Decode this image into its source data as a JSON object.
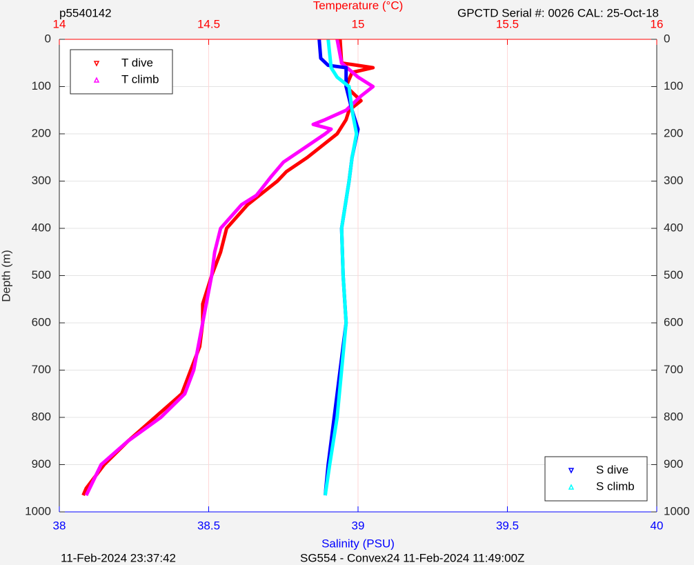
{
  "chart_data": {
    "type": "profile",
    "title_left": "p5540142",
    "title_right": "GPCTD Serial #: 0026 CAL: 25-Oct-18",
    "x2label": "Temperature (°C)",
    "xlabel": "Salinity (PSU)",
    "ylabel": "Depth (m)",
    "footer_left": "11-Feb-2024 23:37:42",
    "footer_right": "SG554 - Convex24 11-Feb-2024 11:49:00Z",
    "xlim": [
      38,
      40
    ],
    "xticks": [
      38,
      38.5,
      39,
      39.5,
      40
    ],
    "xcolor": "#0000ff",
    "x2lim": [
      14,
      16
    ],
    "x2ticks": [
      14,
      14.5,
      15,
      15.5,
      16
    ],
    "x2color": "#ff0000",
    "ylim": [
      1000,
      0
    ],
    "yticks": [
      0,
      100,
      200,
      300,
      400,
      500,
      600,
      700,
      800,
      900,
      1000
    ],
    "grid": true,
    "series": [
      {
        "name": "T dive",
        "color": "#ff0000",
        "axis": "x2",
        "legend": "top-left",
        "x": [
          14.94,
          14.945,
          15.05,
          14.98,
          14.96,
          15.01,
          14.97,
          14.96,
          14.93,
          14.89,
          14.83,
          14.76,
          14.73,
          14.67,
          14.63,
          14.56,
          14.54,
          14.51,
          14.48,
          14.48,
          14.47,
          14.44,
          14.41,
          14.32,
          14.23,
          14.15,
          14.09,
          14.08
        ],
        "y": [
          0,
          50,
          60,
          70,
          100,
          130,
          150,
          170,
          200,
          220,
          250,
          280,
          300,
          330,
          350,
          400,
          450,
          500,
          560,
          600,
          650,
          700,
          750,
          800,
          850,
          900,
          950,
          965
        ]
      },
      {
        "name": "T climb",
        "color": "#ff00ff",
        "axis": "x2",
        "legend": "top-left",
        "x": [
          14.93,
          14.945,
          15.0,
          15.05,
          15.01,
          14.96,
          14.89,
          14.85,
          14.91,
          14.89,
          14.82,
          14.75,
          14.71,
          14.66,
          14.61,
          14.54,
          14.52,
          14.51,
          14.48,
          14.45,
          14.42,
          14.34,
          14.23,
          14.14,
          14.09
        ],
        "y": [
          0,
          50,
          80,
          100,
          120,
          150,
          170,
          180,
          190,
          200,
          230,
          260,
          290,
          330,
          350,
          400,
          450,
          500,
          600,
          700,
          750,
          800,
          850,
          900,
          965
        ]
      },
      {
        "name": "S dive",
        "color": "#0000ff",
        "axis": "x",
        "legend": "bottom-right",
        "x": [
          38.87,
          38.875,
          38.9,
          38.96,
          38.96,
          38.98,
          39.0,
          38.98,
          38.97,
          38.945,
          38.95,
          38.96,
          38.94,
          38.92,
          38.9,
          38.89
        ],
        "y": [
          0,
          40,
          55,
          60,
          100,
          150,
          190,
          250,
          300,
          400,
          500,
          600,
          700,
          800,
          900,
          965
        ]
      },
      {
        "name": "S climb",
        "color": "#00ffff",
        "axis": "x",
        "legend": "bottom-right",
        "x": [
          38.9,
          38.91,
          38.93,
          38.97,
          38.98,
          38.995,
          38.98,
          38.97,
          38.945,
          38.95,
          38.96,
          38.945,
          38.93,
          38.905,
          38.89
        ],
        "y": [
          0,
          60,
          80,
          100,
          150,
          200,
          250,
          300,
          400,
          500,
          600,
          700,
          800,
          900,
          965
        ]
      }
    ]
  }
}
